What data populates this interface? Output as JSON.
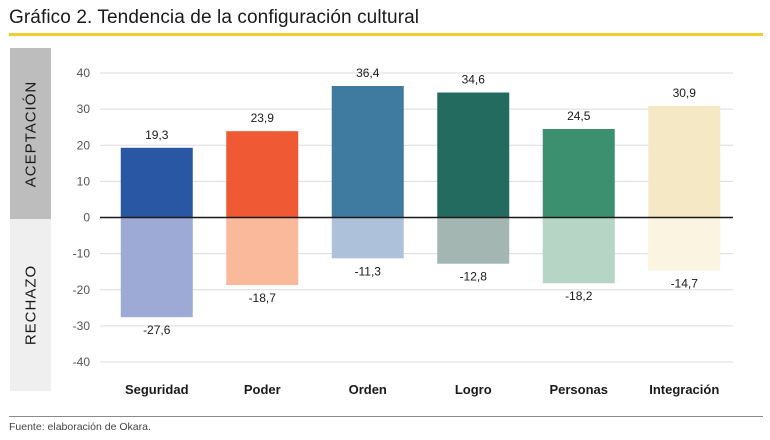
{
  "header": {
    "title": "Gráfico 2. Tendencia de la configuración cultural"
  },
  "bands": {
    "accept_label": "ACEPTACIÓN",
    "reject_label": "RECHAZO"
  },
  "footer": {
    "source": "Fuente: elaboración de Okara."
  },
  "colors": {
    "title_rule": "#f2cc33",
    "zero_line": "#1a1a1a",
    "gridline": "#dcdcdc"
  },
  "chart_data": {
    "type": "bar",
    "title": "Gráfico 2. Tendencia de la configuración cultural",
    "xlabel": "",
    "ylabel": "",
    "ylim": [
      -40,
      40
    ],
    "yticks": [
      40,
      30,
      20,
      10,
      0,
      -10,
      -20,
      -30,
      -40
    ],
    "grid": true,
    "stacked_diverging": true,
    "categories": [
      "Seguridad",
      "Poder",
      "Orden",
      "Logro",
      "Personas",
      "Integración"
    ],
    "series": [
      {
        "name": "Aceptación",
        "values": [
          19.3,
          23.9,
          36.4,
          34.6,
          24.5,
          30.9
        ],
        "labels": [
          "19,3",
          "23,9",
          "36,4",
          "34,6",
          "24,5",
          "30,9"
        ],
        "colors": [
          "#2957a4",
          "#ef5a35",
          "#3f7aa0",
          "#246b5f",
          "#3c9070",
          "#f5e8c4"
        ]
      },
      {
        "name": "Rechazo",
        "values": [
          -27.6,
          -18.7,
          -11.3,
          -12.8,
          -18.2,
          -14.7
        ],
        "labels": [
          "-27,6",
          "-18,7",
          "-11,3",
          "-12,8",
          "-18,2",
          "-14,7"
        ],
        "colors": [
          "#9eaad6",
          "#fab99a",
          "#aec1da",
          "#a4b6b1",
          "#b6d5c4",
          "#fbf4e1"
        ]
      }
    ]
  }
}
